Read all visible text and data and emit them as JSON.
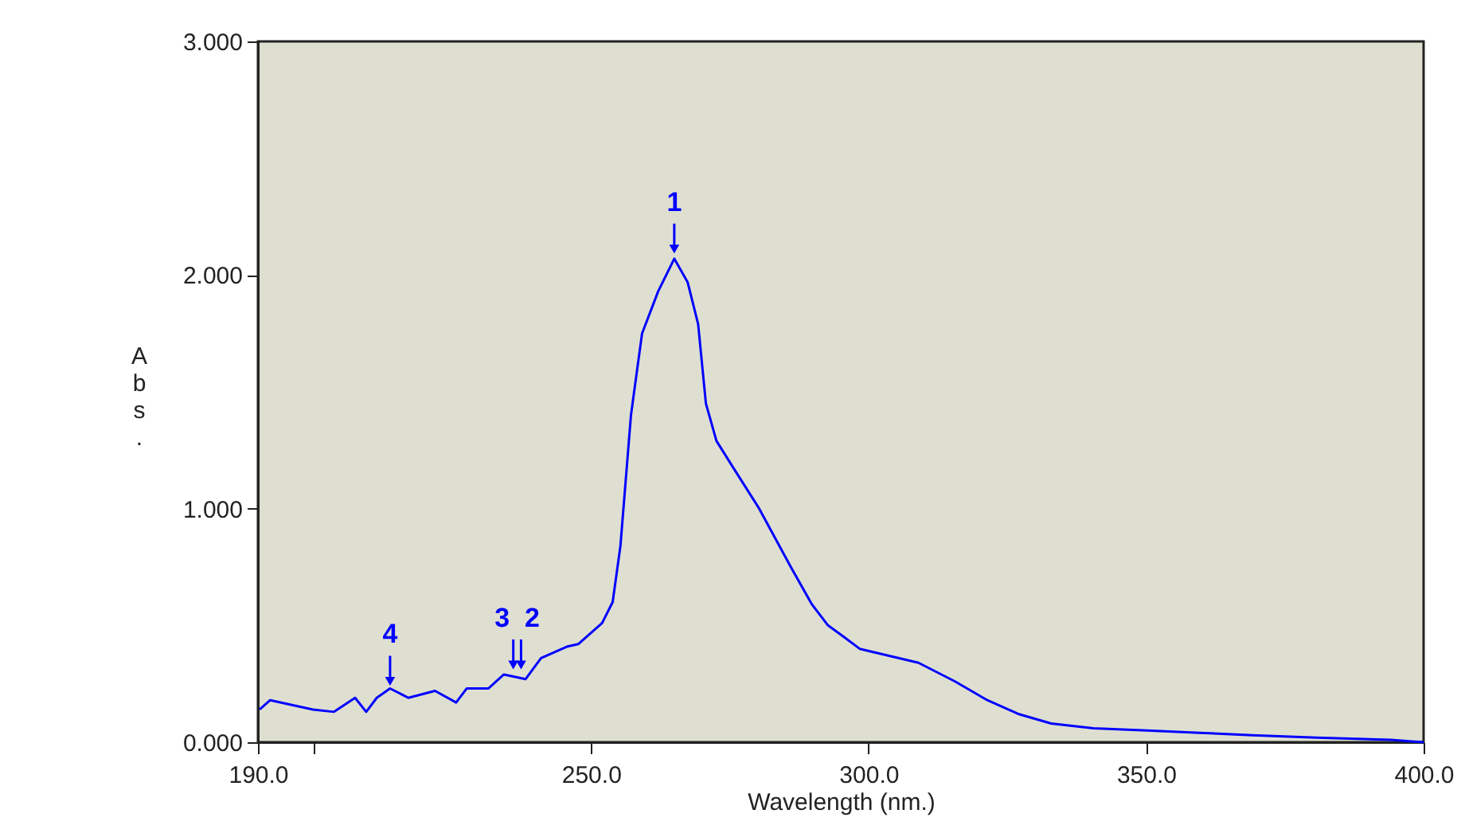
{
  "chart_data": {
    "type": "line",
    "xlabel": "Wavelength (nm.)",
    "ylabel": "Abs.",
    "xlim": [
      190,
      400
    ],
    "ylim": [
      0,
      3
    ],
    "xticks": [
      {
        "value": 190,
        "label": "190.0"
      },
      {
        "value": 200,
        "label": null
      },
      {
        "value": 250,
        "label": "250.0"
      },
      {
        "value": 300,
        "label": "300.0"
      },
      {
        "value": 350,
        "label": "350.0"
      },
      {
        "value": 400,
        "label": "400.0"
      }
    ],
    "yticks": [
      {
        "value": 0,
        "label": "0.000"
      },
      {
        "value": 1,
        "label": "1.000"
      },
      {
        "value": 2,
        "label": "2.000"
      },
      {
        "value": 3,
        "label": "3.000"
      }
    ],
    "grid": false,
    "series": [
      {
        "color": "#0000ff",
        "x": [
          190.3,
          192.2,
          199.9,
          203.7,
          207.5,
          209.5,
          211.4,
          213.8,
          217.1,
          221.9,
          225.7,
          227.6,
          231.5,
          234.3,
          238.2,
          241.0,
          245.8,
          247.7,
          252.0,
          253.9,
          255.3,
          257.2,
          259.2,
          262.1,
          265.0,
          267.4,
          269.3,
          270.7,
          272.6,
          275.5,
          280.3,
          286.0,
          289.8,
          292.7,
          295.6,
          298.4,
          309.0,
          315.6,
          321.4,
          327.1,
          332.9,
          340.5,
          350.1,
          359.7,
          369.2,
          380.7,
          394.1,
          400.0
        ],
        "values": [
          0.14,
          0.18,
          0.14,
          0.13,
          0.19,
          0.13,
          0.19,
          0.23,
          0.19,
          0.22,
          0.17,
          0.23,
          0.23,
          0.29,
          0.27,
          0.36,
          0.41,
          0.42,
          0.51,
          0.6,
          0.84,
          1.4,
          1.75,
          1.93,
          2.07,
          1.97,
          1.79,
          1.45,
          1.29,
          1.18,
          1.0,
          0.75,
          0.59,
          0.5,
          0.45,
          0.4,
          0.34,
          0.26,
          0.18,
          0.12,
          0.08,
          0.06,
          0.05,
          0.04,
          0.03,
          0.02,
          0.01,
          0.0
        ]
      }
    ],
    "annotations": [
      {
        "text": "1",
        "x": 265.0,
        "y": 2.07
      },
      {
        "text": "2",
        "x": 237.4,
        "y": 0.29
      },
      {
        "text": "3",
        "x": 236.0,
        "y": 0.29
      },
      {
        "text": "4",
        "x": 213.8,
        "y": 0.22
      }
    ]
  }
}
